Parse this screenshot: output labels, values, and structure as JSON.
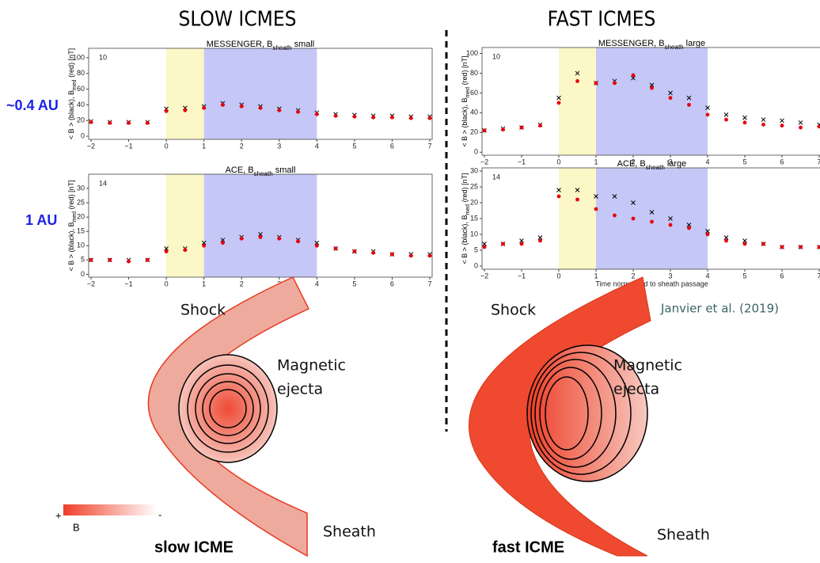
{
  "headers": {
    "slow": "SLOW ICMES",
    "fast": "FAST ICMES"
  },
  "distances": {
    "near": "~0.4 AU",
    "earth": "1 AU"
  },
  "slow_diagram": {
    "shock": "Shock",
    "ejecta": [
      "Magnetic",
      "ejecta"
    ],
    "sheath": "Sheath",
    "caption": "slow ICME"
  },
  "fast_diagram": {
    "shock": "Shock",
    "ejecta": [
      "Magnetic",
      "ejecta"
    ],
    "sheath": "Sheath",
    "caption": "fast ICME"
  },
  "citation": "Janvier et al. (2019)",
  "legend": {
    "plus": "+",
    "minus": "-",
    "label": "B"
  },
  "chart_data": [
    {
      "type": "scatter",
      "title": [
        "MESSENGER, B",
        "sheath",
        " small"
      ],
      "ylabel": [
        "< B > (black), B",
        "med",
        " (red) [nT]"
      ],
      "annotation": "10",
      "xlim": [
        -2,
        7
      ],
      "ylim": [
        -4,
        112
      ],
      "xticks": [
        {
          "value": -2,
          "label": "−2"
        },
        {
          "value": -1,
          "label": "−1"
        },
        0,
        1,
        2,
        3,
        4,
        5,
        6,
        7
      ],
      "yticks": [
        0,
        20,
        40,
        60,
        80,
        100
      ],
      "regions": [
        {
          "start": 0,
          "end": 1,
          "color": "#fbf7c6"
        },
        {
          "start": 1,
          "end": 4,
          "color": "#c5c7f6"
        }
      ],
      "x": [
        -2,
        -1.5,
        -1,
        -0.5,
        0,
        0.5,
        1,
        1.5,
        2,
        2.5,
        3,
        3.5,
        4,
        4.5,
        5,
        5.5,
        6,
        6.5,
        7
      ],
      "series": [
        {
          "marker": "x",
          "color": "#000000",
          "values": [
            19,
            18,
            18,
            18,
            35,
            36,
            38,
            42,
            40,
            38,
            35,
            33,
            30,
            28,
            27,
            26,
            26,
            25,
            25
          ]
        },
        {
          "marker": "o",
          "color": "#e8000b",
          "values": [
            18,
            17,
            17,
            17,
            32,
            33,
            36,
            40,
            38,
            36,
            33,
            31,
            28,
            26,
            25,
            24,
            24,
            23,
            23
          ]
        }
      ]
    },
    {
      "type": "scatter",
      "title": [
        "ACE, B",
        "sheath",
        " small"
      ],
      "ylabel": [
        "< B > (black), B",
        "med",
        " (red) [nT]"
      ],
      "annotation": "14",
      "xlim": [
        -2,
        7
      ],
      "ylim": [
        -1,
        35
      ],
      "xticks": [
        {
          "value": -2,
          "label": "−2"
        },
        {
          "value": -1,
          "label": "−1"
        },
        0,
        1,
        2,
        3,
        4,
        5,
        6,
        7
      ],
      "yticks": [
        0,
        5,
        10,
        15,
        20,
        25,
        30
      ],
      "regions": [
        {
          "start": 0,
          "end": 1,
          "color": "#fbf7c6"
        },
        {
          "start": 1,
          "end": 4,
          "color": "#c5c7f6"
        }
      ],
      "x": [
        -2,
        -1.5,
        -1,
        -0.5,
        0,
        0.5,
        1,
        1.5,
        2,
        2.5,
        3,
        3.5,
        4,
        4.5,
        5,
        5.5,
        6,
        6.5,
        7
      ],
      "series": [
        {
          "marker": "x",
          "color": "#000000",
          "values": [
            5,
            5,
            5,
            5,
            9,
            9,
            11,
            12,
            13,
            14,
            13,
            12,
            11,
            9,
            8,
            8,
            7,
            7,
            7
          ]
        },
        {
          "marker": "o",
          "color": "#e8000b",
          "values": [
            5,
            5,
            4.5,
            5,
            8,
            8.5,
            10,
            11,
            12.5,
            13,
            12.5,
            11.5,
            10,
            9,
            8,
            7.5,
            7,
            6.5,
            6.5
          ]
        }
      ]
    },
    {
      "type": "scatter",
      "title": [
        "MESSENGER, B",
        "sheath",
        " large"
      ],
      "ylabel": [
        "< B > (black), B",
        "med",
        " (red) [nT]"
      ],
      "annotation": "10",
      "xlim": [
        -2,
        7
      ],
      "ylim": [
        -3,
        106
      ],
      "xticks": [
        {
          "value": -2,
          "label": "−2"
        },
        {
          "value": -1,
          "label": "−1"
        },
        0,
        1,
        2,
        3,
        4,
        5,
        6,
        7
      ],
      "yticks": [
        0,
        20,
        40,
        60,
        80,
        100
      ],
      "regions": [
        {
          "start": 0,
          "end": 1,
          "color": "#fbf7c6"
        },
        {
          "start": 1,
          "end": 4,
          "color": "#c5c7f6"
        }
      ],
      "x": [
        -2,
        -1.5,
        -1,
        -0.5,
        0,
        0.5,
        1,
        1.5,
        2,
        2.5,
        3,
        3.5,
        4,
        4.5,
        5,
        5.5,
        6,
        6.5,
        7
      ],
      "series": [
        {
          "marker": "x",
          "color": "#000000",
          "values": [
            22,
            24,
            25,
            28,
            55,
            80,
            70,
            72,
            75,
            68,
            60,
            55,
            45,
            38,
            35,
            33,
            32,
            30,
            28
          ]
        },
        {
          "marker": "o",
          "color": "#e8000b",
          "values": [
            22,
            23,
            25,
            27,
            50,
            72,
            70,
            70,
            78,
            65,
            55,
            48,
            38,
            33,
            30,
            28,
            27,
            25,
            26
          ]
        }
      ]
    },
    {
      "type": "scatter",
      "title": [
        "ACE, B",
        "sheath",
        " large"
      ],
      "ylabel": [
        "< B > (black), B",
        "med",
        " (red) [nT]"
      ],
      "annotation": "14",
      "xlabel": "Time normalized to sheath passage",
      "xlim": [
        -2,
        7
      ],
      "ylim": [
        -1,
        31
      ],
      "xticks": [
        {
          "value": -2,
          "label": "−2"
        },
        {
          "value": -1,
          "label": "−1"
        },
        0,
        1,
        2,
        3,
        4,
        5,
        6,
        7
      ],
      "yticks": [
        0,
        5,
        10,
        15,
        20,
        25,
        30
      ],
      "regions": [
        {
          "start": 0,
          "end": 1,
          "color": "#fbf7c6"
        },
        {
          "start": 1,
          "end": 4,
          "color": "#c5c7f6"
        }
      ],
      "x": [
        -2,
        -1.5,
        -1,
        -0.5,
        0,
        0.5,
        1,
        1.5,
        2,
        2.5,
        3,
        3.5,
        4,
        4.5,
        5,
        5.5,
        6,
        6.5,
        7
      ],
      "series": [
        {
          "marker": "x",
          "color": "#000000",
          "values": [
            7,
            7,
            8,
            9,
            24,
            24,
            22,
            22,
            20,
            17,
            15,
            13,
            11,
            9,
            8,
            7,
            6,
            6,
            6
          ]
        },
        {
          "marker": "o",
          "color": "#e8000b",
          "values": [
            6,
            7,
            7,
            8,
            22,
            21,
            18,
            16,
            15,
            14,
            13,
            12,
            10,
            8,
            7,
            7,
            6,
            6,
            6
          ]
        }
      ]
    }
  ]
}
